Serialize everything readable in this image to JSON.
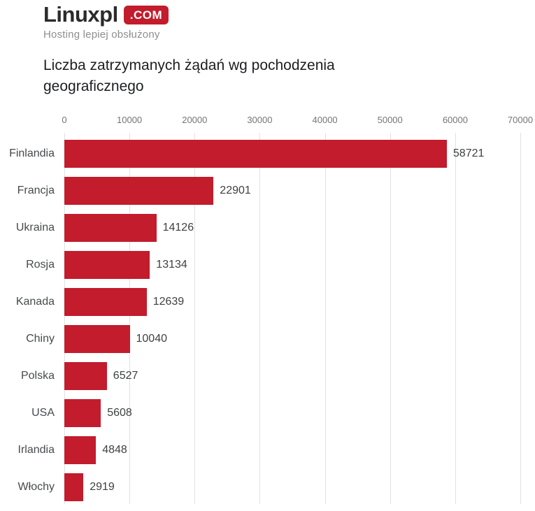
{
  "logo": {
    "brand": "Linuxpl",
    "tld_badge": ".COM",
    "tagline": "Hosting lepiej obsłużony",
    "badge_color": "#c21c2d"
  },
  "title": "Liczba zatrzymanych żądań wg pochodzenia geograficznego",
  "chart_data": {
    "type": "bar",
    "orientation": "horizontal",
    "title": "Liczba zatrzymanych żądań wg pochodzenia geograficznego",
    "categories": [
      "Finlandia",
      "Francja",
      "Ukraina",
      "Rosja",
      "Kanada",
      "Chiny",
      "Polska",
      "USA",
      "Irlandia",
      "Włochy"
    ],
    "values": [
      58721,
      22901,
      14126,
      13134,
      12639,
      10040,
      6527,
      5608,
      4848,
      2919
    ],
    "x_ticks": [
      0,
      10000,
      20000,
      30000,
      40000,
      50000,
      60000,
      70000
    ],
    "xlim": [
      0,
      70000
    ],
    "xlabel": "",
    "ylabel": "",
    "grid": true,
    "value_labels": true,
    "legend": false,
    "bar_color": "#c21c2d",
    "gridline_color": "#e1e1e1"
  }
}
